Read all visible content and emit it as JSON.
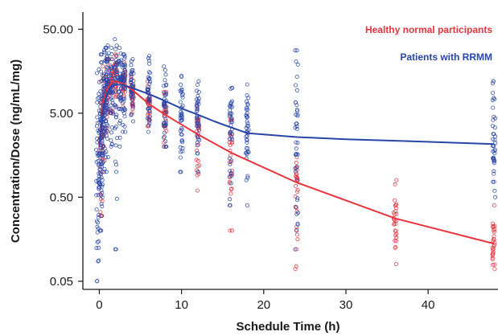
{
  "chart_data": {
    "type": "scatter",
    "xlabel": "Schedule Time (h)",
    "ylabel": "Concentration/Dose (ng/mL/mg)",
    "xlim": [
      -2,
      48.5
    ],
    "ylim": [
      0.04,
      80
    ],
    "y_scale": "log",
    "x_ticks": [
      0,
      10,
      20,
      30,
      40
    ],
    "y_ticks": [
      0.05,
      0.5,
      5,
      50
    ],
    "y_tick_labels": [
      "0.05",
      "0.50",
      "5.00",
      "50.00"
    ],
    "grid": false,
    "legend_position": "top-right",
    "colors": {
      "healthy": "#e8343c",
      "rrmm": "#2845a8",
      "axis": "#1a1a1a"
    },
    "series": [
      {
        "name": "Healthy normal participants",
        "color": "#e8343c",
        "points_per_time": 28,
        "observations": [
          {
            "x": 0.25,
            "center": 2.0,
            "low": 0.3,
            "high": 12
          },
          {
            "x": 0.5,
            "center": 6.0,
            "low": 1.0,
            "high": 18
          },
          {
            "x": 1.0,
            "center": 10.0,
            "low": 3.0,
            "high": 22
          },
          {
            "x": 1.5,
            "center": 12.0,
            "low": 5.0,
            "high": 22
          },
          {
            "x": 2.0,
            "center": 12.0,
            "low": 6.0,
            "high": 25
          },
          {
            "x": 3.0,
            "center": 11.0,
            "low": 6.0,
            "high": 20
          },
          {
            "x": 4.0,
            "center": 9.0,
            "low": 5.0,
            "high": 14
          },
          {
            "x": 6.0,
            "center": 7.0,
            "low": 3.5,
            "high": 12
          },
          {
            "x": 8.0,
            "center": 5.0,
            "low": 2.0,
            "high": 9
          },
          {
            "x": 12.0,
            "center": 3.0,
            "low": 0.6,
            "high": 6
          },
          {
            "x": 16.0,
            "center": 1.8,
            "low": 0.2,
            "high": 4.5
          },
          {
            "x": 24.0,
            "center": 0.7,
            "low": 0.07,
            "high": 1.5
          },
          {
            "x": 36.0,
            "center": 0.25,
            "low": 0.08,
            "high": 0.8
          },
          {
            "x": 48.0,
            "center": 0.12,
            "low": 0.07,
            "high": 0.4
          }
        ],
        "trend": {
          "x": [
            0,
            0.5,
            1,
            1.5,
            2,
            3,
            4,
            6,
            8,
            12,
            16,
            24,
            36,
            48
          ],
          "y": [
            2.0,
            7.0,
            10.0,
            11.5,
            12.0,
            11.0,
            9.5,
            6.5,
            4.8,
            2.8,
            1.7,
            0.75,
            0.28,
            0.14
          ]
        }
      },
      {
        "name": "Patients with RRMM",
        "color": "#2845a8",
        "points_per_time": 40,
        "observations": [
          {
            "x": -0.2,
            "center": 0.3,
            "low": 0.05,
            "high": 15
          },
          {
            "x": 0.1,
            "center": 1.5,
            "low": 0.2,
            "high": 20
          },
          {
            "x": 0.25,
            "center": 3.0,
            "low": 0.3,
            "high": 25
          },
          {
            "x": 0.5,
            "center": 5.0,
            "low": 0.5,
            "high": 28
          },
          {
            "x": 0.75,
            "center": 7.0,
            "low": 1.0,
            "high": 30
          },
          {
            "x": 1.0,
            "center": 9.0,
            "low": 1.5,
            "high": 32
          },
          {
            "x": 1.5,
            "center": 10.0,
            "low": 2.0,
            "high": 30
          },
          {
            "x": 2.0,
            "center": 11.0,
            "low": 0.12,
            "high": 38
          },
          {
            "x": 2.5,
            "center": 11.0,
            "low": 2.0,
            "high": 30
          },
          {
            "x": 3.0,
            "center": 11.0,
            "low": 3.0,
            "high": 25
          },
          {
            "x": 4.0,
            "center": 10.0,
            "low": 4.0,
            "high": 22
          },
          {
            "x": 6.0,
            "center": 8.0,
            "low": 3.0,
            "high": 24
          },
          {
            "x": 8.0,
            "center": 6.5,
            "low": 2.0,
            "high": 18
          },
          {
            "x": 10.0,
            "center": 5.5,
            "low": 1.0,
            "high": 14
          },
          {
            "x": 12.0,
            "center": 4.5,
            "low": 1.0,
            "high": 12
          },
          {
            "x": 16.0,
            "center": 3.5,
            "low": 0.4,
            "high": 10
          },
          {
            "x": 18.0,
            "center": 3.0,
            "low": 0.4,
            "high": 11
          },
          {
            "x": 24.0,
            "center": 2.5,
            "low": 0.12,
            "high": 28
          },
          {
            "x": 48.0,
            "center": 1.8,
            "low": 0.5,
            "high": 12
          }
        ],
        "trend": {
          "x": [
            0,
            0.5,
            1,
            1.5,
            2,
            3,
            4,
            6,
            8,
            10,
            12,
            14,
            16,
            18,
            24,
            30,
            36,
            42,
            48
          ],
          "y": [
            2.0,
            6.0,
            9.0,
            10.5,
            11.0,
            10.8,
            10.0,
            8.5,
            7.0,
            5.7,
            4.8,
            4.0,
            3.4,
            2.9,
            2.6,
            2.45,
            2.35,
            2.25,
            2.15
          ]
        }
      }
    ]
  }
}
